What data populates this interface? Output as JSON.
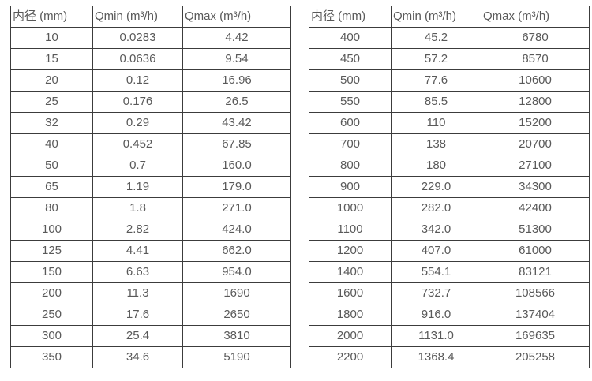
{
  "colors": {
    "border": "#3c3c3c",
    "text": "#595959",
    "background": "#ffffff"
  },
  "column_cell_names": [
    "cell-diameter",
    "cell-qmin",
    "cell-qmax"
  ],
  "tables": [
    {
      "name": "flow-table-small-diameters",
      "headers": [
        "内径 (mm)",
        "Qmin (m³/h)",
        "Qmax (m³/h)"
      ],
      "rows": [
        [
          "10",
          "0.0283",
          "4.42"
        ],
        [
          "15",
          "0.0636",
          "9.54"
        ],
        [
          "20",
          "0.12",
          "16.96"
        ],
        [
          "25",
          "0.176",
          "26.5"
        ],
        [
          "32",
          "0.29",
          "43.42"
        ],
        [
          "40",
          "0.452",
          "67.85"
        ],
        [
          "50",
          "0.7",
          "160.0"
        ],
        [
          "65",
          "1.19",
          "179.0"
        ],
        [
          "80",
          "1.8",
          "271.0"
        ],
        [
          "100",
          "2.82",
          "424.0"
        ],
        [
          "125",
          "4.41",
          "662.0"
        ],
        [
          "150",
          "6.63",
          "954.0"
        ],
        [
          "200",
          "11.3",
          "1690"
        ],
        [
          "250",
          "17.6",
          "2650"
        ],
        [
          "300",
          "25.4",
          "3810"
        ],
        [
          "350",
          "34.6",
          "5190"
        ]
      ]
    },
    {
      "name": "flow-table-large-diameters",
      "headers": [
        "内径 (mm)",
        "Qmin (m³/h)",
        "Qmax (m³/h)"
      ],
      "rows": [
        [
          "400",
          "45.2",
          "6780"
        ],
        [
          "450",
          "57.2",
          "8570"
        ],
        [
          "500",
          "77.6",
          "10600"
        ],
        [
          "550",
          "85.5",
          "12800"
        ],
        [
          "600",
          "110",
          "15200"
        ],
        [
          "700",
          "138",
          "20700"
        ],
        [
          "800",
          "180",
          "27100"
        ],
        [
          "900",
          "229.0",
          "34300"
        ],
        [
          "1000",
          "282.0",
          "42400"
        ],
        [
          "1100",
          "342.0",
          "51300"
        ],
        [
          "1200",
          "407.0",
          "61000"
        ],
        [
          "1400",
          "554.1",
          "83121"
        ],
        [
          "1600",
          "732.7",
          "108566"
        ],
        [
          "1800",
          "916.0",
          "137404"
        ],
        [
          "2000",
          "1131.0",
          "169635"
        ],
        [
          "2200",
          "1368.4",
          "205258"
        ]
      ]
    }
  ]
}
